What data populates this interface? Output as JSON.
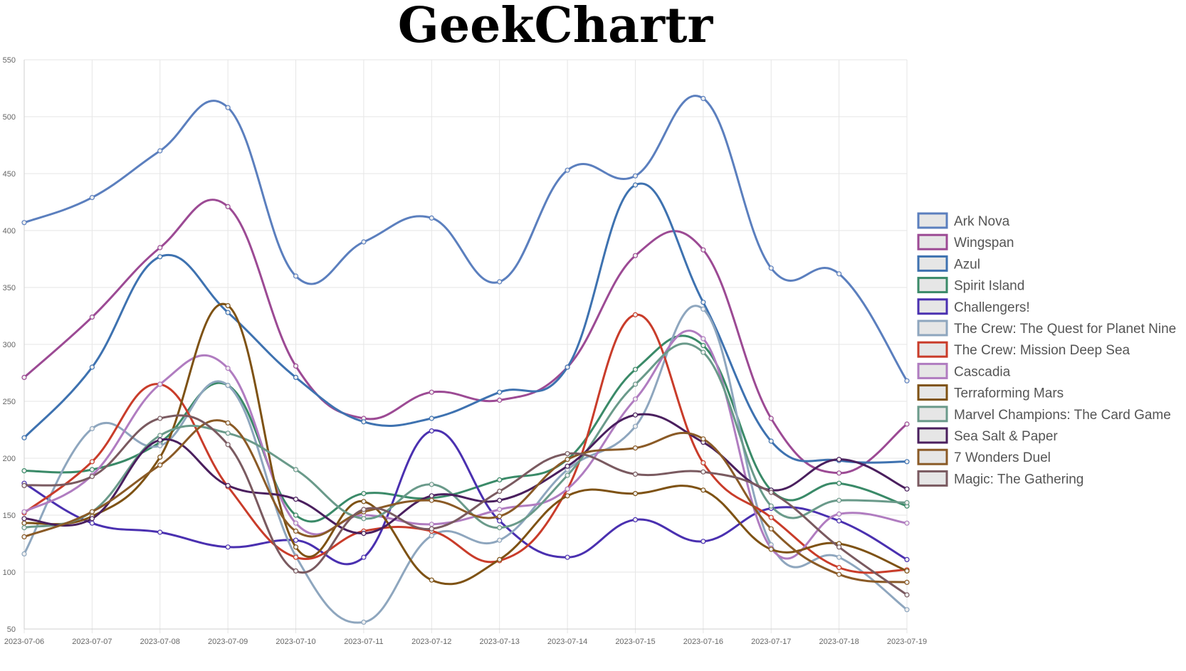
{
  "chart_data": {
    "type": "line",
    "title": "GeekChartr",
    "x": [
      "2023-07-06",
      "2023-07-07",
      "2023-07-08",
      "2023-07-09",
      "2023-07-10",
      "2023-07-11",
      "2023-07-12",
      "2023-07-13",
      "2023-07-14",
      "2023-07-15",
      "2023-07-16",
      "2023-07-17",
      "2023-07-18",
      "2023-07-19"
    ],
    "ylim": [
      50,
      550
    ],
    "yticks": [
      "550",
      "500",
      "450",
      "400",
      "350",
      "300",
      "250",
      "200",
      "150",
      "100",
      "50"
    ],
    "grid": true,
    "legend_position": "right",
    "series": [
      {
        "name": "Ark Nova",
        "color": "#5b7fbe",
        "values": [
          407,
          429,
          470,
          508,
          360,
          390,
          411,
          355,
          453,
          448,
          516,
          367,
          362,
          268
        ]
      },
      {
        "name": "Wingspan",
        "color": "#9c4a94",
        "values": [
          271,
          324,
          385,
          421,
          281,
          235,
          258,
          251,
          280,
          378,
          383,
          235,
          187,
          230
        ]
      },
      {
        "name": "Azul",
        "color": "#3e72b0",
        "values": [
          218,
          280,
          377,
          328,
          271,
          232,
          235,
          258,
          280,
          440,
          337,
          215,
          198,
          197
        ]
      },
      {
        "name": "Spirit Island",
        "color": "#3a8a68",
        "values": [
          189,
          190,
          214,
          264,
          150,
          169,
          165,
          181,
          199,
          278,
          299,
          172,
          178,
          158
        ]
      },
      {
        "name": "Challengers!",
        "color": "#4a30b0",
        "values": [
          178,
          143,
          135,
          122,
          128,
          113,
          224,
          145,
          113,
          146,
          127,
          156,
          145,
          111
        ]
      },
      {
        "name": "The Crew: The Quest for Planet Nine",
        "color": "#8ea6be",
        "values": [
          116,
          226,
          211,
          264,
          114,
          56,
          132,
          128,
          190,
          228,
          331,
          124,
          113,
          67
        ]
      },
      {
        "name": "The Crew: Mission Deep Sea",
        "color": "#c93c2a",
        "values": [
          152,
          197,
          265,
          175,
          113,
          136,
          136,
          110,
          173,
          326,
          196,
          148,
          104,
          102
        ]
      },
      {
        "name": "Cascadia",
        "color": "#b07cc0",
        "values": [
          153,
          185,
          265,
          279,
          143,
          150,
          142,
          155,
          173,
          252,
          305,
          121,
          151,
          143
        ]
      },
      {
        "name": "Terraforming Mars",
        "color": "#7e5214",
        "values": [
          143,
          149,
          201,
          334,
          122,
          162,
          93,
          111,
          167,
          169,
          172,
          120,
          125,
          101
        ]
      },
      {
        "name": "Marvel Champions: The Card Game",
        "color": "#6a9a8a",
        "values": [
          139,
          153,
          220,
          222,
          190,
          147,
          177,
          139,
          185,
          265,
          293,
          158,
          163,
          161
        ]
      },
      {
        "name": "Sea Salt & Paper",
        "color": "#4a1f5e",
        "values": [
          147,
          147,
          216,
          176,
          164,
          134,
          167,
          163,
          193,
          238,
          214,
          172,
          199,
          173
        ]
      },
      {
        "name": "7 Wonders Duel",
        "color": "#8a5a26",
        "values": [
          131,
          153,
          194,
          231,
          136,
          153,
          163,
          149,
          199,
          209,
          217,
          138,
          98,
          91
        ]
      },
      {
        "name": "Magic: The Gathering",
        "color": "#7a5a60",
        "values": [
          176,
          184,
          235,
          212,
          101,
          155,
          138,
          171,
          204,
          186,
          188,
          170,
          122,
          80
        ]
      }
    ]
  }
}
